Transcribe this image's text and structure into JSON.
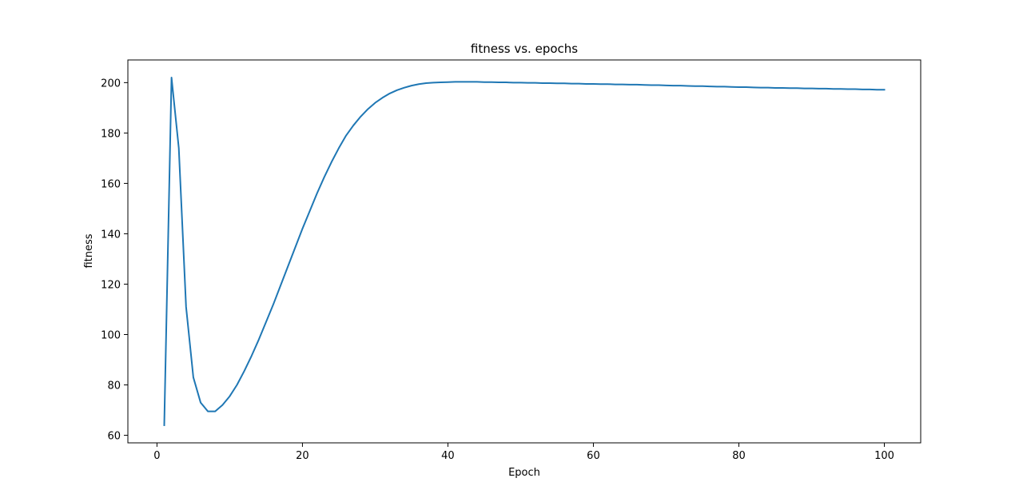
{
  "chart_data": {
    "type": "line",
    "title": "fitness vs. epochs",
    "xlabel": "Epoch",
    "ylabel": "fitness",
    "xlim": [
      -4,
      105
    ],
    "ylim": [
      57,
      209
    ],
    "xticks": [
      0,
      20,
      40,
      60,
      80,
      100
    ],
    "yticks": [
      60,
      80,
      100,
      120,
      140,
      160,
      180,
      200
    ],
    "grid": false,
    "legend": "none",
    "series": [
      {
        "color": "#1f77b4",
        "x": [
          1,
          2,
          3,
          4,
          5,
          6,
          7,
          8,
          9,
          10,
          11,
          12,
          13,
          14,
          15,
          16,
          17,
          18,
          19,
          20,
          21,
          22,
          23,
          24,
          25,
          26,
          27,
          28,
          29,
          30,
          31,
          32,
          33,
          34,
          35,
          36,
          37,
          38,
          39,
          40,
          41,
          42,
          43,
          44,
          45,
          46,
          47,
          48,
          49,
          50,
          51,
          52,
          53,
          54,
          55,
          56,
          57,
          58,
          59,
          60,
          61,
          62,
          63,
          64,
          65,
          66,
          67,
          68,
          69,
          70,
          71,
          72,
          73,
          74,
          75,
          76,
          77,
          78,
          79,
          80,
          81,
          82,
          83,
          84,
          85,
          86,
          87,
          88,
          89,
          90,
          91,
          92,
          93,
          94,
          95,
          96,
          97,
          98,
          99,
          100
        ],
        "y": [
          64,
          202,
          174,
          111,
          83,
          73,
          69.5,
          69.5,
          72,
          75.5,
          80,
          85.5,
          91.5,
          98,
          105,
          112,
          119.5,
          127,
          134.5,
          142,
          149,
          156,
          162.5,
          168.5,
          174,
          179,
          183,
          186.5,
          189.5,
          192,
          194,
          195.7,
          197,
          198,
          198.8,
          199.4,
          199.8,
          200,
          200.1,
          200.2,
          200.3,
          200.3,
          200.3,
          200.3,
          200.2,
          200.2,
          200.1,
          200.1,
          200,
          200,
          199.9,
          199.9,
          199.8,
          199.8,
          199.7,
          199.7,
          199.6,
          199.6,
          199.5,
          199.5,
          199.4,
          199.4,
          199.3,
          199.3,
          199.2,
          199.2,
          199.1,
          199,
          199,
          198.9,
          198.8,
          198.8,
          198.7,
          198.6,
          198.6,
          198.5,
          198.4,
          198.4,
          198.3,
          198.2,
          198.2,
          198.1,
          198,
          198,
          197.9,
          197.9,
          197.8,
          197.8,
          197.7,
          197.7,
          197.6,
          197.6,
          197.5,
          197.5,
          197.4,
          197.4,
          197.3,
          197.3,
          197.2,
          197.2
        ]
      }
    ]
  }
}
